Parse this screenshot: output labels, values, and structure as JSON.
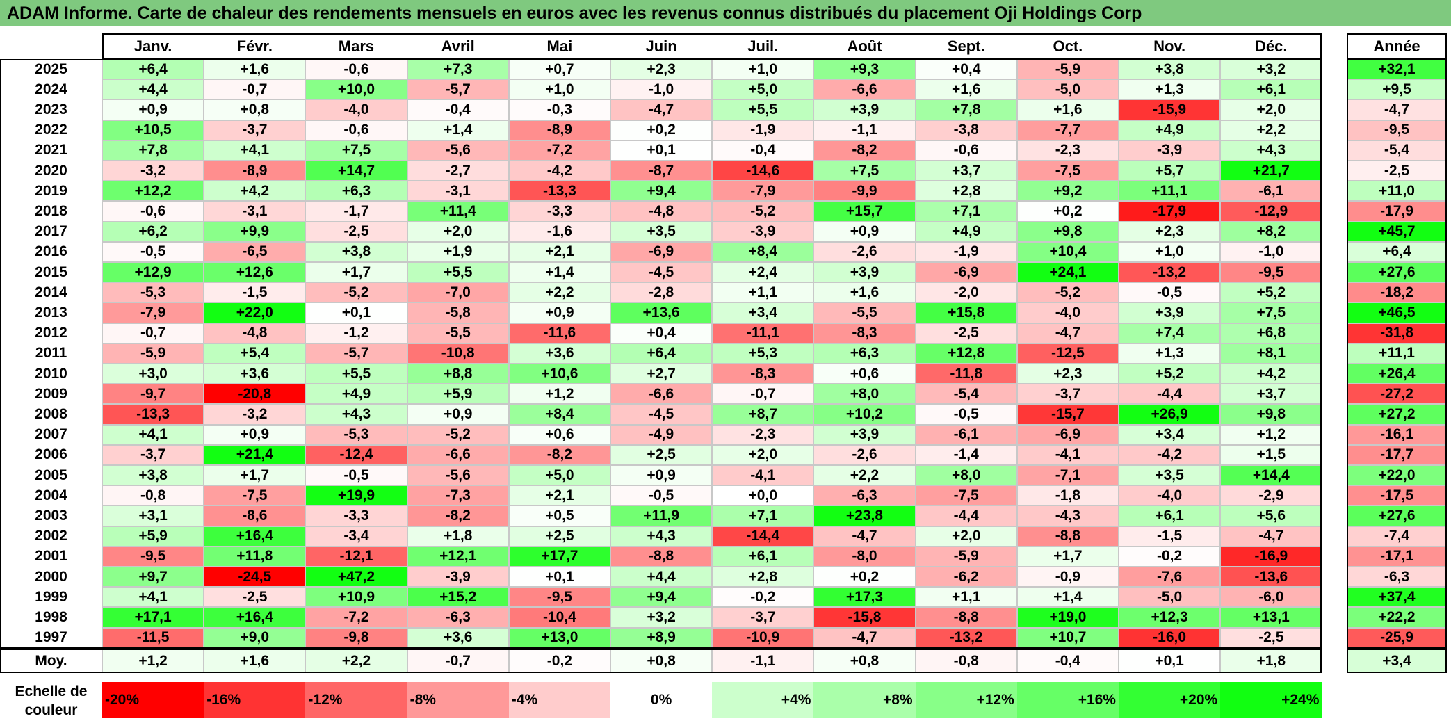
{
  "title": "ADAM Informe. Carte de chaleur des rendements mensuels en euros avec les revenus connus distribués du placement Oji Holdings Corp",
  "chart_data": {
    "type": "heatmap",
    "months": [
      "Janv.",
      "Févr.",
      "Mars",
      "Avril",
      "Mai",
      "Juin",
      "Juil.",
      "Août",
      "Sept.",
      "Oct.",
      "Nov.",
      "Déc."
    ],
    "year_header": "Année",
    "rows": [
      {
        "year": "2025",
        "values": [
          "+6,4",
          "+1,6",
          "-0,6",
          "+7,3",
          "+0,7",
          "+2,3",
          "+1,0",
          "+9,3",
          "+0,4",
          "-5,9",
          "+3,8",
          "+3,2"
        ],
        "annual": "+32,1"
      },
      {
        "year": "2024",
        "values": [
          "+4,4",
          "-0,7",
          "+10,0",
          "-5,7",
          "+1,0",
          "-1,0",
          "+5,0",
          "-6,6",
          "+1,6",
          "-5,0",
          "+1,3",
          "+6,1"
        ],
        "annual": "+9,5"
      },
      {
        "year": "2023",
        "values": [
          "+0,9",
          "+0,8",
          "-4,0",
          "-0,4",
          "-0,3",
          "-4,7",
          "+5,5",
          "+3,9",
          "+7,8",
          "+1,6",
          "-15,9",
          "+2,0"
        ],
        "annual": "-4,7"
      },
      {
        "year": "2022",
        "values": [
          "+10,5",
          "-3,7",
          "-0,6",
          "+1,4",
          "-8,9",
          "+0,2",
          "-1,9",
          "-1,1",
          "-3,8",
          "-7,7",
          "+4,9",
          "+2,2"
        ],
        "annual": "-9,5"
      },
      {
        "year": "2021",
        "values": [
          "+7,8",
          "+4,1",
          "+7,5",
          "-5,6",
          "-7,2",
          "+0,1",
          "-0,4",
          "-8,2",
          "-0,6",
          "-2,3",
          "-3,9",
          "+4,3"
        ],
        "annual": "-5,4"
      },
      {
        "year": "2020",
        "values": [
          "-3,2",
          "-8,9",
          "+14,7",
          "-2,7",
          "-4,2",
          "-8,7",
          "-14,6",
          "+7,5",
          "+3,7",
          "-7,5",
          "+5,7",
          "+21,7"
        ],
        "annual": "-2,5"
      },
      {
        "year": "2019",
        "values": [
          "+12,2",
          "+4,2",
          "+6,3",
          "-3,1",
          "-13,3",
          "+9,4",
          "-7,9",
          "-9,9",
          "+2,8",
          "+9,2",
          "+11,1",
          "-6,1"
        ],
        "annual": "+11,0"
      },
      {
        "year": "2018",
        "values": [
          "-0,6",
          "-3,1",
          "-1,7",
          "+11,4",
          "-3,3",
          "-4,8",
          "-5,2",
          "+15,7",
          "+7,1",
          "+0,2",
          "-17,9",
          "-12,9"
        ],
        "annual": "-17,9"
      },
      {
        "year": "2017",
        "values": [
          "+6,2",
          "+9,9",
          "-2,5",
          "+2,0",
          "-1,6",
          "+3,5",
          "-3,9",
          "+0,9",
          "+4,9",
          "+9,8",
          "+2,3",
          "+8,2"
        ],
        "annual": "+45,7"
      },
      {
        "year": "2016",
        "values": [
          "-0,5",
          "-6,5",
          "+3,8",
          "+1,9",
          "+2,1",
          "-6,9",
          "+8,4",
          "-2,6",
          "-1,9",
          "+10,4",
          "+1,0",
          "-1,0"
        ],
        "annual": "+6,4"
      },
      {
        "year": "2015",
        "values": [
          "+12,9",
          "+12,6",
          "+1,7",
          "+5,5",
          "+1,4",
          "-4,5",
          "+2,4",
          "+3,9",
          "-6,9",
          "+24,1",
          "-13,2",
          "-9,5"
        ],
        "annual": "+27,6"
      },
      {
        "year": "2014",
        "values": [
          "-5,3",
          "-1,5",
          "-5,2",
          "-7,0",
          "+2,2",
          "-2,8",
          "+1,1",
          "+1,6",
          "-2,0",
          "-5,2",
          "-0,5",
          "+5,2"
        ],
        "annual": "-18,2"
      },
      {
        "year": "2013",
        "values": [
          "-7,9",
          "+22,0",
          "+0,1",
          "-5,8",
          "+0,9",
          "+13,6",
          "+3,4",
          "-5,5",
          "+15,8",
          "-4,0",
          "+3,9",
          "+7,5"
        ],
        "annual": "+46,5"
      },
      {
        "year": "2012",
        "values": [
          "-0,7",
          "-4,8",
          "-1,2",
          "-5,5",
          "-11,6",
          "+0,4",
          "-11,1",
          "-8,3",
          "-2,5",
          "-4,7",
          "+7,4",
          "+6,8"
        ],
        "annual": "-31,8"
      },
      {
        "year": "2011",
        "values": [
          "-5,9",
          "+5,4",
          "-5,7",
          "-10,8",
          "+3,6",
          "+6,4",
          "+5,3",
          "+6,3",
          "+12,8",
          "-12,5",
          "+1,3",
          "+8,1"
        ],
        "annual": "+11,1"
      },
      {
        "year": "2010",
        "values": [
          "+3,0",
          "+3,6",
          "+5,5",
          "+8,8",
          "+10,6",
          "+2,7",
          "-8,3",
          "+0,6",
          "-11,8",
          "+2,3",
          "+5,2",
          "+4,2"
        ],
        "annual": "+26,4"
      },
      {
        "year": "2009",
        "values": [
          "-9,7",
          "-20,8",
          "+4,9",
          "+5,9",
          "+1,2",
          "-6,6",
          "-0,7",
          "+8,0",
          "-5,4",
          "-3,7",
          "-4,4",
          "+3,7"
        ],
        "annual": "-27,2"
      },
      {
        "year": "2008",
        "values": [
          "-13,3",
          "-3,2",
          "+4,3",
          "+0,9",
          "+8,4",
          "-4,5",
          "+8,7",
          "+10,2",
          "-0,5",
          "-15,7",
          "+26,9",
          "+9,8"
        ],
        "annual": "+27,2"
      },
      {
        "year": "2007",
        "values": [
          "+4,1",
          "+0,9",
          "-5,3",
          "-5,2",
          "+0,6",
          "-4,9",
          "-2,3",
          "+3,9",
          "-6,1",
          "-6,9",
          "+3,4",
          "+1,2"
        ],
        "annual": "-16,1"
      },
      {
        "year": "2006",
        "values": [
          "-3,7",
          "+21,4",
          "-12,4",
          "-6,6",
          "-8,2",
          "+2,5",
          "+2,0",
          "-2,6",
          "-1,4",
          "-4,1",
          "-4,2",
          "+1,5"
        ],
        "annual": "-17,7"
      },
      {
        "year": "2005",
        "values": [
          "+3,8",
          "+1,7",
          "-0,5",
          "-5,6",
          "+5,0",
          "+0,9",
          "-4,1",
          "+2,2",
          "+8,0",
          "-7,1",
          "+3,5",
          "+14,4"
        ],
        "annual": "+22,0"
      },
      {
        "year": "2004",
        "values": [
          "-0,8",
          "-7,5",
          "+19,9",
          "-7,3",
          "+2,1",
          "-0,5",
          "+0,0",
          "-6,3",
          "-7,5",
          "-1,8",
          "-4,0",
          "-2,9"
        ],
        "annual": "-17,5"
      },
      {
        "year": "2003",
        "values": [
          "+3,1",
          "-8,6",
          "-3,3",
          "-8,2",
          "+0,5",
          "+11,9",
          "+7,1",
          "+23,8",
          "-4,4",
          "-4,3",
          "+6,1",
          "+5,6"
        ],
        "annual": "+27,6"
      },
      {
        "year": "2002",
        "values": [
          "+5,9",
          "+16,4",
          "-3,4",
          "+1,8",
          "+2,5",
          "+4,3",
          "-14,4",
          "-4,7",
          "+2,0",
          "-8,8",
          "-1,5",
          "-4,7"
        ],
        "annual": "-7,4"
      },
      {
        "year": "2001",
        "values": [
          "-9,5",
          "+11,8",
          "-12,1",
          "+12,1",
          "+17,7",
          "-8,8",
          "+6,1",
          "-8,0",
          "-5,9",
          "+1,7",
          "-0,2",
          "-16,9"
        ],
        "annual": "-17,1"
      },
      {
        "year": "2000",
        "values": [
          "+9,7",
          "-24,5",
          "+47,2",
          "-3,9",
          "+0,1",
          "+4,4",
          "+2,8",
          "+0,2",
          "-6,2",
          "-0,9",
          "-7,6",
          "-13,6"
        ],
        "annual": "-6,3"
      },
      {
        "year": "1999",
        "values": [
          "+4,1",
          "-2,5",
          "+10,9",
          "+15,2",
          "-9,5",
          "+9,4",
          "-0,2",
          "+17,3",
          "+1,1",
          "+1,4",
          "-5,0",
          "-6,0"
        ],
        "annual": "+37,4"
      },
      {
        "year": "1998",
        "values": [
          "+17,1",
          "+16,4",
          "-7,2",
          "-6,3",
          "-10,4",
          "+3,2",
          "-3,7",
          "-15,8",
          "-8,8",
          "+19,0",
          "+12,3",
          "+13,1"
        ],
        "annual": "+22,2"
      },
      {
        "year": "1997",
        "values": [
          "-11,5",
          "+9,0",
          "-9,8",
          "+3,6",
          "+13,0",
          "+8,9",
          "-10,9",
          "-4,7",
          "-13,2",
          "+10,7",
          "-16,0",
          "-2,5"
        ],
        "annual": "-25,9"
      }
    ],
    "average": {
      "label": "Moy.",
      "values": [
        "+1,2",
        "+1,6",
        "+2,2",
        "-0,7",
        "-0,2",
        "+0,8",
        "-1,1",
        "+0,8",
        "-0,8",
        "-0,4",
        "+0,1",
        "+1,8"
      ],
      "annual": "+3,4"
    },
    "color_scale": {
      "label_line1": "Echelle de",
      "label_line2": "couleur",
      "steps": [
        {
          "label": "-20%",
          "value": -20,
          "color": "#ff0000"
        },
        {
          "label": "-16%",
          "value": -16,
          "color": "#ff3333"
        },
        {
          "label": "-12%",
          "value": -12,
          "color": "#ff6666"
        },
        {
          "label": "-8%",
          "value": -8,
          "color": "#ff9999"
        },
        {
          "label": "-4%",
          "value": -4,
          "color": "#ffcccc"
        },
        {
          "label": "0%",
          "value": 0,
          "color": "#ffffff"
        },
        {
          "label": "+4%",
          "value": 4,
          "color": "#ccffcc"
        },
        {
          "label": "+8%",
          "value": 8,
          "color": "#aaffaa"
        },
        {
          "label": "+12%",
          "value": 12,
          "color": "#88ff88"
        },
        {
          "label": "+16%",
          "value": 16,
          "color": "#66ff66"
        },
        {
          "label": "+20%",
          "value": 20,
          "color": "#33ff33"
        },
        {
          "label": "+24%",
          "value": 24,
          "color": "#11ff11"
        }
      ]
    }
  }
}
